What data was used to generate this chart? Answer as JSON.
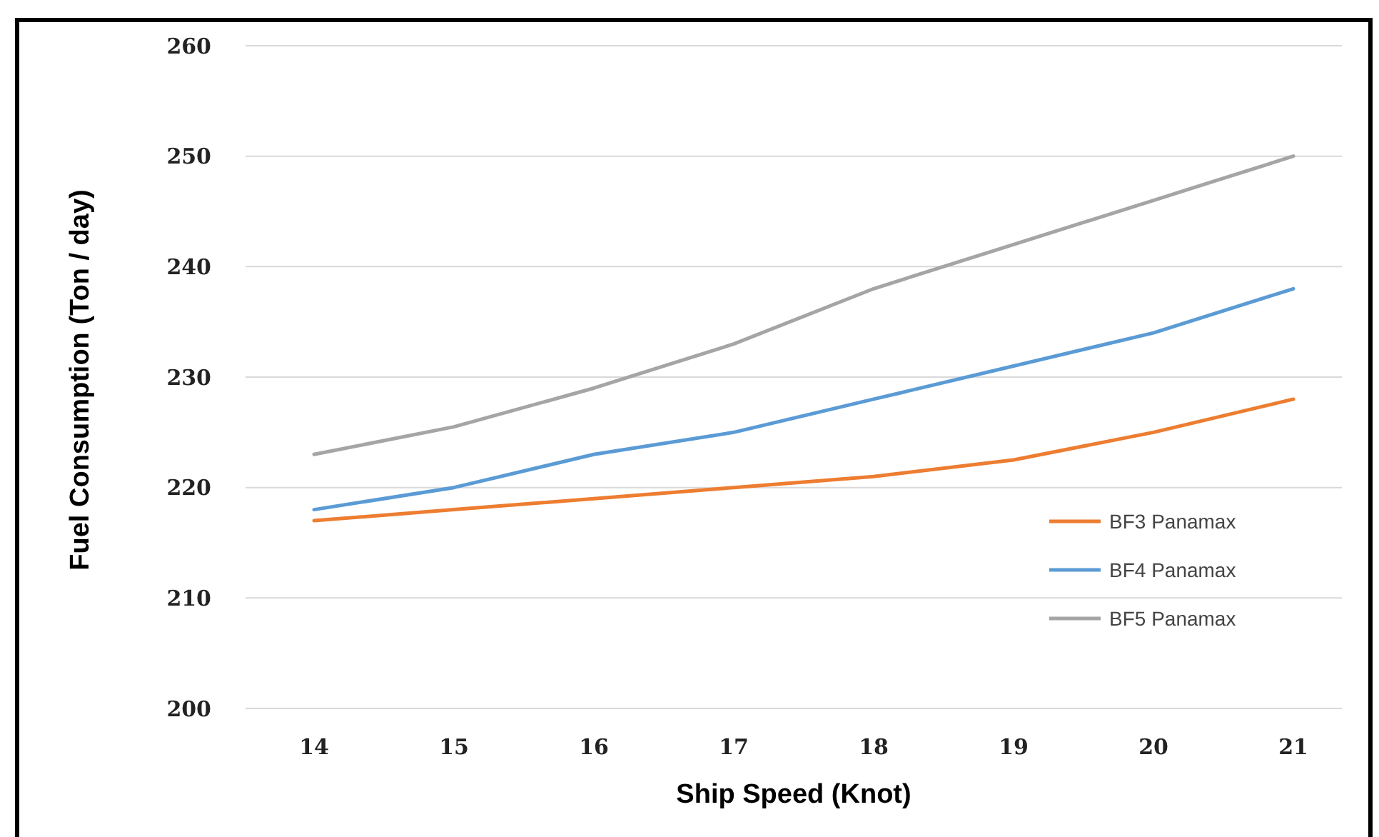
{
  "chart_data": {
    "type": "line",
    "xlabel": "Ship Speed (Knot)",
    "ylabel": "Fuel Consumption (Ton / day)",
    "categories": [
      "14",
      "15",
      "16",
      "17",
      "18",
      "19",
      "20",
      "21"
    ],
    "series": [
      {
        "name": "BF3 Panamax",
        "color": "#ed7d31",
        "values": [
          217,
          218,
          219,
          220,
          221,
          222.5,
          225,
          228
        ]
      },
      {
        "name": "BF4 Panamax",
        "color": "#5b9bd5",
        "values": [
          218,
          220,
          223,
          225,
          228,
          231,
          234,
          238
        ]
      },
      {
        "name": "BF5 Panamax",
        "color": "#a5a5a5",
        "values": [
          223,
          225.5,
          229,
          233,
          238,
          242,
          246,
          250
        ]
      }
    ],
    "ylim": [
      200,
      260
    ],
    "yticks": [
      200,
      210,
      220,
      230,
      240,
      250,
      260
    ],
    "grid": "y",
    "legend": "right",
    "marker": "none",
    "line_style": "solid"
  }
}
